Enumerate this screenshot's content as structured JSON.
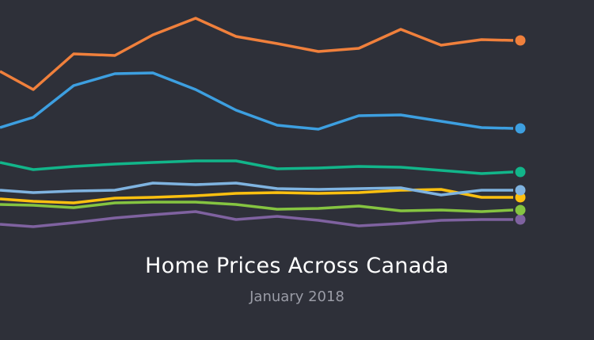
{
  "chart_data": {
    "type": "line",
    "title": "Home Prices Across Canada",
    "subtitle": "January 2018",
    "axes_shown": false,
    "grid": false,
    "legend": "none",
    "ylim": [
      0,
      300
    ],
    "x": [
      1,
      2,
      3,
      4,
      5,
      6,
      7,
      8,
      9,
      10,
      11,
      12,
      13,
      14
    ],
    "series": [
      {
        "color": "#7f62a0",
        "values": [
          17,
          14,
          19,
          25,
          29,
          33,
          23,
          27,
          22,
          15,
          18,
          22,
          23,
          23
        ]
      },
      {
        "color": "#fcc010",
        "values": [
          49,
          46,
          44,
          50,
          51,
          53,
          56,
          57,
          56,
          57,
          60,
          61,
          51,
          51
        ]
      },
      {
        "color": "#85c441",
        "values": [
          42,
          41,
          38,
          44,
          45,
          45,
          42,
          36,
          37,
          40,
          34,
          35,
          33,
          35
        ]
      },
      {
        "color": "#7fb3e0",
        "values": [
          60,
          57,
          59,
          60,
          69,
          67,
          69,
          62,
          61,
          62,
          63,
          54,
          60,
          60
        ]
      },
      {
        "color": "#12b58a",
        "values": [
          95,
          86,
          90,
          93,
          95,
          97,
          97,
          87,
          88,
          90,
          89,
          85,
          81,
          83
        ]
      },
      {
        "color": "#3d9fe0",
        "values": [
          139,
          152,
          192,
          207,
          208,
          187,
          161,
          142,
          137,
          154,
          155,
          147,
          139,
          138
        ]
      },
      {
        "color": "#f0803c",
        "values": [
          210,
          187,
          232,
          230,
          256,
          277,
          254,
          245,
          235,
          239,
          263,
          243,
          250,
          249
        ]
      }
    ]
  }
}
